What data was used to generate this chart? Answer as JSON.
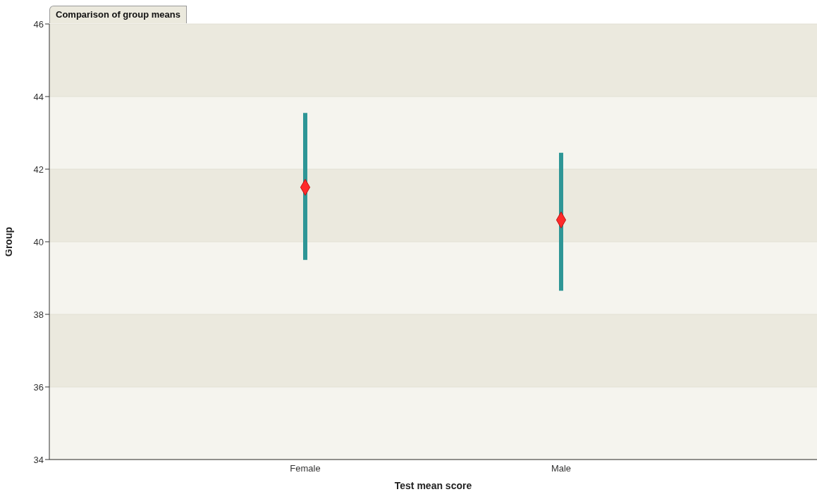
{
  "chart_data": {
    "type": "scatter",
    "title": "Comparison of group means",
    "xlabel": "Test mean score",
    "ylabel": "Group",
    "categories": [
      "Female",
      "Male"
    ],
    "series": [
      {
        "color": "#ff2a2a",
        "values": [
          41.5,
          40.6
        ],
        "errors": [
          [
            39.5,
            43.55
          ],
          [
            38.65,
            42.45
          ]
        ]
      }
    ],
    "ylim": [
      34,
      46
    ],
    "yticks": [
      34,
      36,
      38,
      40,
      42,
      44,
      46
    ],
    "grid": "y",
    "marker": "diamond"
  }
}
